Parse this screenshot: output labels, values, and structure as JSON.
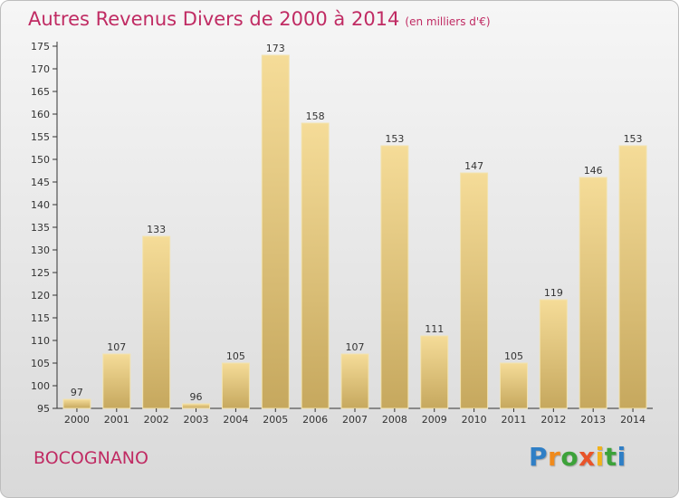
{
  "chart_data": {
    "type": "bar",
    "title": "Autres Revenus Divers de 2000 à 2014",
    "subtitle": "(en milliers d'€)",
    "categories": [
      "2000",
      "2001",
      "2002",
      "2003",
      "2004",
      "2005",
      "2006",
      "2007",
      "2008",
      "2009",
      "2010",
      "2011",
      "2012",
      "2013",
      "2014"
    ],
    "values": [
      97,
      107,
      133,
      96,
      105,
      173,
      158,
      107,
      153,
      111,
      147,
      105,
      119,
      146,
      153
    ],
    "ylim": [
      95,
      175
    ],
    "ytick_step": 5,
    "grid": false,
    "legend": "none",
    "bar_color_top": "#f5dc98",
    "bar_color_bottom": "#c6a85e"
  },
  "place_name": "BOCOGNANO",
  "logo": {
    "letters": [
      "P",
      "r",
      "o",
      "x",
      "i",
      "t",
      "i"
    ],
    "colors": [
      "#2f7fc6",
      "#f08a1c",
      "#3da23a",
      "#e8542a",
      "#f2b21b",
      "#3da23a",
      "#2f7fc6"
    ]
  },
  "colors": {
    "accent": "#c02b63",
    "axis": "#333333",
    "label": "#333333"
  }
}
